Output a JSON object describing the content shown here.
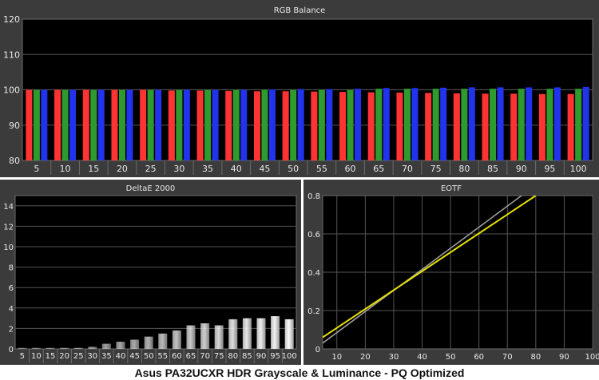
{
  "caption": "Asus PA32UCXR HDR Grayscale & Luminance - PQ Optimized",
  "colors": {
    "panel_bg": "#3b3b3b",
    "plot_bg": "#000000",
    "grid": "#555555",
    "text": "#e8e8e8",
    "red": "#ff3333",
    "green": "#2e9b2e",
    "blue": "#2233ee",
    "eotf_target": "#9a9a9a",
    "eotf_measured": "#e8e000"
  },
  "chart_data": [
    {
      "id": "rgb",
      "type": "bar",
      "title": "RGB Balance",
      "ylim": [
        80,
        120
      ],
      "yticks": [
        80,
        90,
        100,
        110,
        120
      ],
      "categories": [
        "5",
        "10",
        "15",
        "20",
        "25",
        "30",
        "35",
        "40",
        "45",
        "50",
        "55",
        "60",
        "65",
        "70",
        "75",
        "80",
        "85",
        "90",
        "95",
        "100"
      ],
      "series": [
        {
          "color": "#ff3333",
          "values": [
            100,
            100,
            100,
            100,
            100,
            99.8,
            99.8,
            99.7,
            99.6,
            99.6,
            99.5,
            99.4,
            99.3,
            99.2,
            99.1,
            99,
            98.9,
            98.9,
            98.8,
            98.8
          ]
        },
        {
          "color": "#2e9b2e",
          "values": [
            100,
            100,
            100,
            100,
            100,
            100,
            100,
            100,
            100,
            100,
            100,
            100,
            100.3,
            100.3,
            100.3,
            100.3,
            100.3,
            100.3,
            100.3,
            100.3
          ]
        },
        {
          "color": "#2233ee",
          "values": [
            100,
            100,
            100,
            100,
            100,
            100,
            100,
            100,
            100.1,
            100.2,
            100.2,
            100.3,
            100.5,
            100.5,
            100.6,
            100.7,
            100.7,
            100.7,
            100.7,
            100.8
          ]
        }
      ],
      "grid": true
    },
    {
      "id": "deltae",
      "type": "bar",
      "title": "DeltaE 2000",
      "ylim": [
        0,
        15
      ],
      "yticks": [
        0,
        2,
        4,
        6,
        8,
        10,
        12,
        14
      ],
      "categories": [
        "5",
        "10",
        "15",
        "20",
        "25",
        "30",
        "35",
        "40",
        "45",
        "50",
        "55",
        "60",
        "65",
        "70",
        "75",
        "80",
        "85",
        "90",
        "95",
        "100"
      ],
      "values": [
        0.1,
        0.1,
        0.1,
        0.1,
        0.1,
        0.2,
        0.5,
        0.7,
        0.9,
        1.2,
        1.5,
        1.8,
        2.3,
        2.5,
        2.3,
        2.9,
        3.0,
        3.0,
        3.2,
        2.9
      ],
      "grid": true
    },
    {
      "id": "eotf",
      "type": "line",
      "title": "EOTF",
      "xlim": [
        5,
        100
      ],
      "ylim": [
        0,
        0.8
      ],
      "xticks": [
        10,
        20,
        30,
        40,
        50,
        60,
        70,
        80,
        90,
        100
      ],
      "yticks": [
        0,
        0.2,
        0.4,
        0.6,
        0.8
      ],
      "series": [
        {
          "color": "#9a9a9a",
          "x": [
            5,
            75
          ],
          "y": [
            0.03,
            0.8
          ]
        },
        {
          "color": "#e8e000",
          "x": [
            5,
            80
          ],
          "y": [
            0.06,
            0.8
          ]
        }
      ],
      "grid": true
    }
  ]
}
